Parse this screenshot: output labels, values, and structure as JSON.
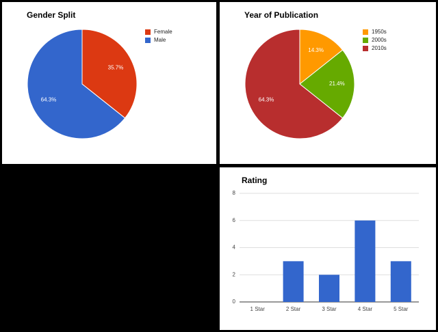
{
  "chart_data": [
    {
      "type": "pie",
      "title": "Gender Split",
      "categories": [
        "Female",
        "Male"
      ],
      "values": [
        35.7,
        64.3
      ],
      "value_labels": [
        "35.7%",
        "64.3%"
      ],
      "colors": [
        "#dc3912",
        "#3366cc"
      ]
    },
    {
      "type": "pie",
      "title": "Year of Publication",
      "categories": [
        "1950s",
        "2000s",
        "2010s"
      ],
      "values": [
        14.3,
        21.4,
        64.3
      ],
      "value_labels": [
        "14.3%",
        "21.4%",
        "64.3%"
      ],
      "colors": [
        "#ff9900",
        "#66aa00",
        "#b82e2e"
      ]
    },
    {
      "type": "bar",
      "title": "Rating",
      "categories": [
        "1 Star",
        "2 Star",
        "3 Star",
        "4 Star",
        "5 Star"
      ],
      "values": [
        0,
        3,
        2,
        6,
        3
      ],
      "color": "#3366cc",
      "ylim": [
        0,
        8
      ],
      "yticks": [
        0,
        2,
        4,
        6,
        8
      ],
      "grid": true
    }
  ]
}
